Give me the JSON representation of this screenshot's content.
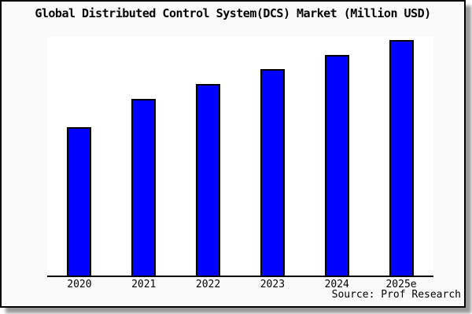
{
  "title": "Global Distributed Control System(DCS) Market (Million USD)",
  "source": "Source: Prof Research",
  "colors": {
    "bar_fill": "#0000ff",
    "bar_border": "#000000",
    "frame_background": "#fafafa",
    "plot_background": "#ffffff",
    "axis": "#000000",
    "shadow": "#999999"
  },
  "chart_data": {
    "type": "bar",
    "title": "Global Distributed Control System(DCS) Market (Million USD)",
    "categories": [
      "2020",
      "2021",
      "2022",
      "2023",
      "2024",
      "2025e"
    ],
    "values": [
      189,
      225,
      244,
      263,
      281,
      300
    ],
    "units": "relative (no y-axis tick labels shown; values estimated from bar heights, tallest bar = 300)",
    "xlabel": "",
    "ylabel": "",
    "ylim": [
      0,
      304
    ],
    "grid": false,
    "legend": null,
    "source": "Source: Prof Research"
  }
}
